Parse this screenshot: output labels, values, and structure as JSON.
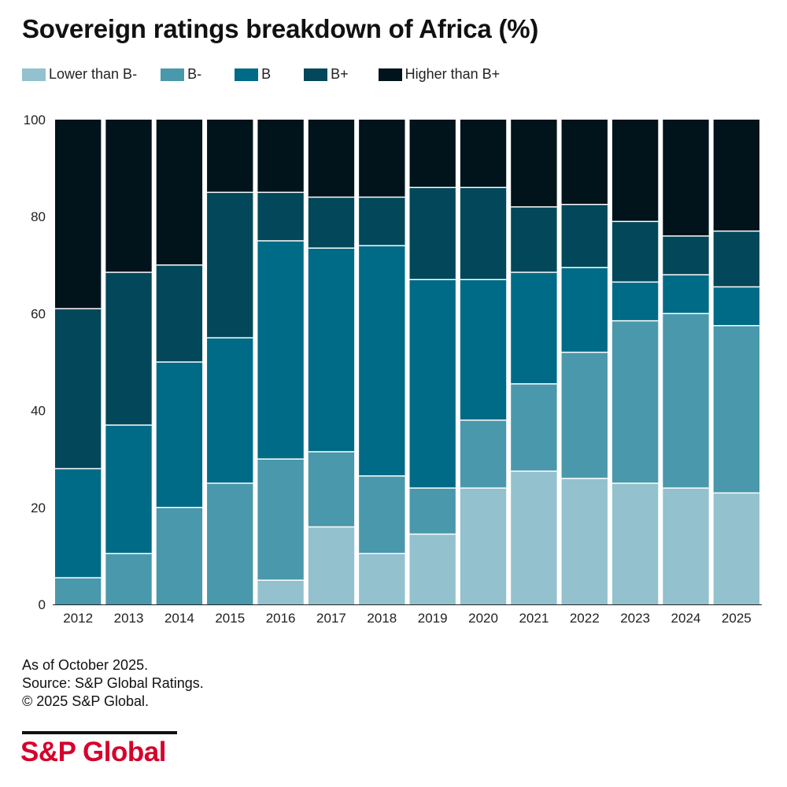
{
  "title": "Sovereign ratings breakdown of Africa (%)",
  "legend": [
    {
      "label": "Lower than B-",
      "color": "#93c1ce"
    },
    {
      "label": "B-",
      "color": "#4a98ab"
    },
    {
      "label": "B",
      "color": "#006b86"
    },
    {
      "label": "B+",
      "color": "#02475a"
    },
    {
      "label": "Higher than B+",
      "color": "#01131b"
    }
  ],
  "chart_data": {
    "type": "bar",
    "stacked": true,
    "title": "Sovereign ratings breakdown of Africa (%)",
    "categories": [
      "2012",
      "2013",
      "2014",
      "2015",
      "2016",
      "2017",
      "2018",
      "2019",
      "2020",
      "2021",
      "2022",
      "2023",
      "2024",
      "2025"
    ],
    "series": [
      {
        "name": "Lower than B-",
        "color": "#93c1ce",
        "values": [
          0,
          0,
          0,
          0,
          5,
          16,
          10.5,
          14.5,
          24,
          27.5,
          26,
          25,
          24,
          23
        ]
      },
      {
        "name": "B-",
        "color": "#4a98ab",
        "values": [
          5.5,
          10.5,
          20,
          25,
          25,
          15.5,
          16,
          9.5,
          14,
          18,
          26,
          33.5,
          36,
          34.5
        ]
      },
      {
        "name": "B",
        "color": "#006b86",
        "values": [
          22.5,
          26.5,
          30,
          30,
          45,
          42,
          47.5,
          43,
          29,
          23,
          17.5,
          8,
          8,
          8
        ]
      },
      {
        "name": "B+",
        "color": "#02475a",
        "values": [
          33,
          31.5,
          20,
          30,
          10,
          10.5,
          10,
          19,
          19,
          13.5,
          13,
          12.5,
          8,
          11.5
        ]
      },
      {
        "name": "Higher than B+",
        "color": "#01131b",
        "values": [
          39,
          31.5,
          30,
          15,
          15,
          16,
          16,
          14,
          14,
          18,
          17.5,
          21,
          24,
          23
        ]
      }
    ],
    "yticks": [
      0,
      20,
      40,
      60,
      80,
      100
    ],
    "ylim": [
      0,
      100
    ],
    "xlabel": "",
    "ylabel": "",
    "legend_position": "top"
  },
  "notes": {
    "line1": "As of October 2025.",
    "line2": "Source: S&P Global Ratings.",
    "line3": "© 2025 S&P Global."
  },
  "logo": "S&P Global"
}
